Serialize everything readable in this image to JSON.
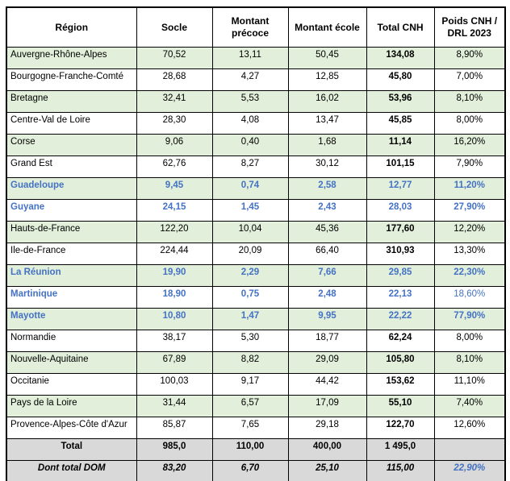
{
  "table": {
    "columns": [
      "Région",
      "Socle",
      "Montant précoce",
      "Montant école",
      "Total CNH",
      "Poids CNH / DRL 2023"
    ],
    "rows": [
      {
        "region": "Auvergne-Rhône-Alpes",
        "values": [
          "70,52",
          "13,11",
          "50,45",
          "134,08",
          "8,90%"
        ],
        "bg": "green",
        "style": ""
      },
      {
        "region": "Bourgogne-Franche-Comté",
        "values": [
          "28,68",
          "4,27",
          "12,85",
          "45,80",
          "7,00%"
        ],
        "bg": "white",
        "style": ""
      },
      {
        "region": "Bretagne",
        "values": [
          "32,41",
          "5,53",
          "16,02",
          "53,96",
          "8,10%"
        ],
        "bg": "green",
        "style": ""
      },
      {
        "region": "Centre-Val de Loire",
        "values": [
          "28,30",
          "4,08",
          "13,47",
          "45,85",
          "8,00%"
        ],
        "bg": "white",
        "style": ""
      },
      {
        "region": "Corse",
        "values": [
          "9,06",
          "0,40",
          "1,68",
          "11,14",
          "16,20%"
        ],
        "bg": "green",
        "style": ""
      },
      {
        "region": "Grand Est",
        "values": [
          "62,76",
          "8,27",
          "30,12",
          "101,15",
          "7,90%"
        ],
        "bg": "white",
        "style": ""
      },
      {
        "region": "Guadeloupe",
        "values": [
          "9,45",
          "0,74",
          "2,58",
          "12,77",
          "11,20%"
        ],
        "bg": "green",
        "style": "dom"
      },
      {
        "region": "Guyane",
        "values": [
          "24,15",
          "1,45",
          "2,43",
          "28,03",
          "27,90%"
        ],
        "bg": "white",
        "style": "dom"
      },
      {
        "region": "Hauts-de-France",
        "values": [
          "122,20",
          "10,04",
          "45,36",
          "177,60",
          "12,20%"
        ],
        "bg": "green",
        "style": ""
      },
      {
        "region": "Ile-de-France",
        "values": [
          "224,44",
          "20,09",
          "66,40",
          "310,93",
          "13,30%"
        ],
        "bg": "white",
        "style": ""
      },
      {
        "region": "La Réunion",
        "values": [
          "19,90",
          "2,29",
          "7,66",
          "29,85",
          "22,30%"
        ],
        "bg": "green",
        "style": "dom"
      },
      {
        "region": "Martinique",
        "values": [
          "18,90",
          "0,75",
          "2,48",
          "22,13",
          "18,60%"
        ],
        "bg": "white",
        "style": "dom",
        "plain_last": true
      },
      {
        "region": "Mayotte",
        "values": [
          "10,80",
          "1,47",
          "9,95",
          "22,22",
          "77,90%"
        ],
        "bg": "green",
        "style": "dom"
      },
      {
        "region": "Normandie",
        "values": [
          "38,17",
          "5,30",
          "18,77",
          "62,24",
          "8,00%"
        ],
        "bg": "white",
        "style": ""
      },
      {
        "region": "Nouvelle-Aquitaine",
        "values": [
          "67,89",
          "8,82",
          "29,09",
          "105,80",
          "8,10%"
        ],
        "bg": "green",
        "style": ""
      },
      {
        "region": "Occitanie",
        "values": [
          "100,03",
          "9,17",
          "44,42",
          "153,62",
          "11,10%"
        ],
        "bg": "white",
        "style": ""
      },
      {
        "region": "Pays de la Loire",
        "values": [
          "31,44",
          "6,57",
          "17,09",
          "55,10",
          "7,40%"
        ],
        "bg": "green",
        "style": ""
      },
      {
        "region": "Provence-Alpes-Côte d'Azur",
        "values": [
          "85,87",
          "7,65",
          "29,18",
          "122,70",
          "12,60%"
        ],
        "bg": "white",
        "style": ""
      },
      {
        "region": "Total",
        "values": [
          "985,0",
          "110,00",
          "400,00",
          "1 495,0",
          ""
        ],
        "bg": "gray",
        "style": "total"
      },
      {
        "region": "Dont total DOM",
        "values": [
          "83,20",
          "6,70",
          "25,10",
          "115,00",
          "22,90%"
        ],
        "bg": "gray",
        "style": "dom-total"
      }
    ],
    "colors": {
      "row_green": "#E2EFDA",
      "row_gray": "#D9D9D9",
      "dom_blue": "#4472C4",
      "border": "#000000"
    }
  }
}
